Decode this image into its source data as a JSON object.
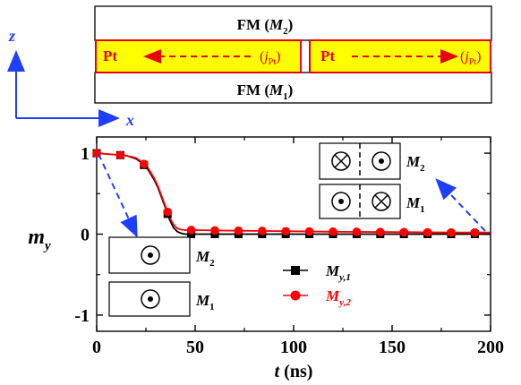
{
  "schematic": {
    "top_layer_label": "FM (",
    "top_layer_var": "M",
    "top_layer_sub": "2",
    "top_layer_close": ")",
    "bottom_layer_label": "FM (",
    "bottom_layer_var": "M",
    "bottom_layer_sub": "1",
    "bottom_layer_close": ")",
    "pt_left": "Pt",
    "pt_right": "Pt",
    "current_var": "j",
    "current_sub": "Pt",
    "axis_z": "z",
    "axis_x": "x",
    "colors": {
      "pt_fill": "#ffff00",
      "pt_border": "#e8000b",
      "axis": "#1f3fff",
      "arrow": "#e8000b"
    }
  },
  "chart_data": {
    "type": "line",
    "xlabel_var": "t",
    "xlabel_unit": "(ns)",
    "ylabel_var": "m",
    "ylabel_sub": "y",
    "xlim": [
      0,
      200
    ],
    "ylim": [
      -1.2,
      1.2
    ],
    "xticks": [
      0,
      50,
      100,
      150,
      200
    ],
    "yticks": [
      -1,
      0,
      1
    ],
    "series": [
      {
        "name_var": "M",
        "name_sub": "y,1",
        "color": "#000000",
        "marker": "square",
        "x": [
          0,
          5,
          10,
          15,
          20,
          23,
          26,
          29,
          31,
          33,
          35,
          37,
          39,
          41,
          43,
          45,
          50,
          60,
          80,
          100,
          120,
          150,
          180,
          200
        ],
        "y": [
          1,
          0.99,
          0.98,
          0.97,
          0.93,
          0.88,
          0.8,
          0.68,
          0.58,
          0.45,
          0.32,
          0.18,
          0.08,
          0.03,
          0.01,
          0.0,
          0.0,
          0.0,
          0.0,
          0.0,
          0.0,
          0.0,
          0.0,
          0.0
        ],
        "marker_x": [
          0,
          12,
          24,
          36,
          48,
          60,
          72,
          84,
          96,
          108,
          120,
          132,
          144,
          156,
          168,
          180,
          192
        ]
      },
      {
        "name_var": "M",
        "name_sub": "y,2",
        "color": "#ff0000",
        "marker": "circle",
        "x": [
          0,
          5,
          10,
          15,
          20,
          23,
          26,
          29,
          31,
          33,
          35,
          37,
          39,
          41,
          43,
          45,
          50,
          60,
          80,
          100,
          120,
          150,
          180,
          200
        ],
        "y": [
          1,
          0.99,
          0.98,
          0.97,
          0.94,
          0.89,
          0.82,
          0.7,
          0.6,
          0.47,
          0.34,
          0.21,
          0.12,
          0.07,
          0.055,
          0.05,
          0.05,
          0.045,
          0.04,
          0.035,
          0.03,
          0.025,
          0.02,
          0.02
        ],
        "marker_x": [
          0,
          12,
          24,
          36,
          48,
          60,
          72,
          84,
          96,
          108,
          120,
          132,
          144,
          156,
          168,
          180,
          192
        ]
      }
    ]
  },
  "insets": {
    "left_top_label_var": "M",
    "left_top_label_sub": "2",
    "left_bottom_label_var": "M",
    "left_bottom_label_sub": "1",
    "right_top_label_var": "M",
    "right_top_label_sub": "2",
    "right_bottom_label_var": "M",
    "right_bottom_label_sub": "1"
  }
}
